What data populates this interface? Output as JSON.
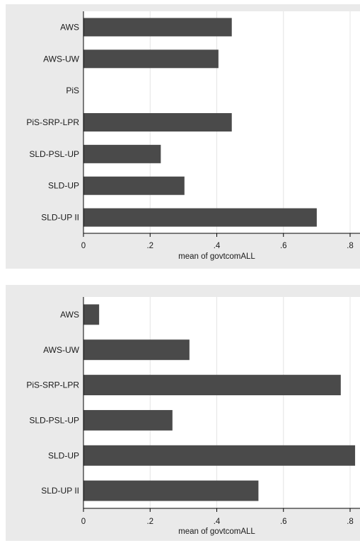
{
  "chart_data": [
    {
      "type": "bar",
      "orientation": "horizontal",
      "categories": [
        "AWS",
        "AWS-UW",
        "PiS",
        "PiS-SRP-LPR",
        "SLD-PSL-UP",
        "SLD-UP",
        "SLD-UP II"
      ],
      "values": [
        0.445,
        0.405,
        null,
        0.445,
        0.232,
        0.303,
        0.7
      ],
      "xlabel": "mean of govtcomALL",
      "xlim": [
        0,
        0.8
      ],
      "xticks": [
        0,
        0.2,
        0.4,
        0.6,
        0.8
      ],
      "xtick_labels": [
        "0",
        ".2",
        ".4",
        ".6",
        ".8"
      ],
      "grid": true,
      "bar_color": "#4a4a4a"
    },
    {
      "type": "bar",
      "orientation": "horizontal",
      "categories": [
        "AWS",
        "AWS-UW",
        "PiS-SRP-LPR",
        "SLD-PSL-UP",
        "SLD-UP",
        "SLD-UP II"
      ],
      "values": [
        0.047,
        0.318,
        0.772,
        0.267,
        0.815,
        0.525
      ],
      "xlabel": "mean of govtcomALL",
      "xlim": [
        0,
        0.8
      ],
      "xticks": [
        0,
        0.2,
        0.4,
        0.6,
        0.8
      ],
      "xtick_labels": [
        "0",
        ".2",
        ".4",
        ".6",
        ".8"
      ],
      "grid": true,
      "bar_color": "#4a4a4a"
    }
  ]
}
